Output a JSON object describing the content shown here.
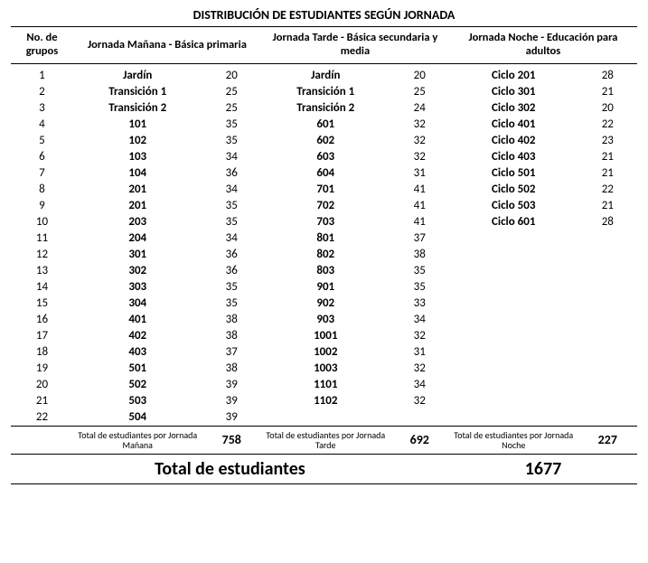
{
  "title": "DISTRIBUCIÓN DE ESTUDIANTES SEGÚN JORNADA",
  "headers": {
    "no": "No. de grupos",
    "j1": "Jornada Mañana - Básica primaria",
    "j2": "Jornada Tarde - Básica secundaria y media",
    "j3": "Jornada Noche - Educación para adultos"
  },
  "j1": [
    {
      "name": "Jardín",
      "val": 20
    },
    {
      "name": "Transición 1",
      "val": 25
    },
    {
      "name": "Transición 2",
      "val": 25
    },
    {
      "name": "101",
      "val": 35
    },
    {
      "name": "102",
      "val": 35
    },
    {
      "name": "103",
      "val": 34
    },
    {
      "name": "104",
      "val": 36
    },
    {
      "name": "201",
      "val": 34
    },
    {
      "name": "201",
      "val": 35
    },
    {
      "name": "203",
      "val": 35
    },
    {
      "name": "204",
      "val": 34
    },
    {
      "name": "301",
      "val": 36
    },
    {
      "name": "302",
      "val": 36
    },
    {
      "name": "303",
      "val": 35
    },
    {
      "name": "304",
      "val": 35
    },
    {
      "name": "401",
      "val": 38
    },
    {
      "name": "402",
      "val": 38
    },
    {
      "name": "403",
      "val": 37
    },
    {
      "name": "501",
      "val": 38
    },
    {
      "name": "502",
      "val": 39
    },
    {
      "name": "503",
      "val": 39
    },
    {
      "name": "504",
      "val": 39
    }
  ],
  "j2": [
    {
      "name": "Jardín",
      "val": 20
    },
    {
      "name": "Transición 1",
      "val": 25
    },
    {
      "name": "Transición 2",
      "val": 24
    },
    {
      "name": "601",
      "val": 32
    },
    {
      "name": "602",
      "val": 32
    },
    {
      "name": "603",
      "val": 32
    },
    {
      "name": "604",
      "val": 31
    },
    {
      "name": "701",
      "val": 41
    },
    {
      "name": "702",
      "val": 41
    },
    {
      "name": "703",
      "val": 41
    },
    {
      "name": "801",
      "val": 37
    },
    {
      "name": "802",
      "val": 38
    },
    {
      "name": "803",
      "val": 35
    },
    {
      "name": "901",
      "val": 35
    },
    {
      "name": "902",
      "val": 33
    },
    {
      "name": "903",
      "val": 34
    },
    {
      "name": "1001",
      "val": 32
    },
    {
      "name": "1002",
      "val": 31
    },
    {
      "name": "1003",
      "val": 32
    },
    {
      "name": "1101",
      "val": 34
    },
    {
      "name": "1102",
      "val": 32
    }
  ],
  "j3": [
    {
      "name": "Ciclo 201",
      "val": 28
    },
    {
      "name": "Ciclo 301",
      "val": 21
    },
    {
      "name": "Ciclo 302",
      "val": 20
    },
    {
      "name": "Ciclo 401",
      "val": 22
    },
    {
      "name": "Ciclo 402",
      "val": 23
    },
    {
      "name": "Ciclo 403",
      "val": 21
    },
    {
      "name": "Ciclo 501",
      "val": 21
    },
    {
      "name": "Ciclo 502",
      "val": 22
    },
    {
      "name": "Ciclo 503",
      "val": 21
    },
    {
      "name": "Ciclo 601",
      "val": 28
    }
  ],
  "row_count": 22,
  "subtotals": {
    "j1_label": "Total de estudiantes por Jornada Mañana",
    "j1_value": 758,
    "j2_label": "Total de estudiantes por Jornada Tarde",
    "j2_value": 692,
    "j3_label": "Total de estudiantes por Jornada Noche",
    "j3_value": 227
  },
  "grand": {
    "label": "Total de estudiantes",
    "value": 1677
  }
}
